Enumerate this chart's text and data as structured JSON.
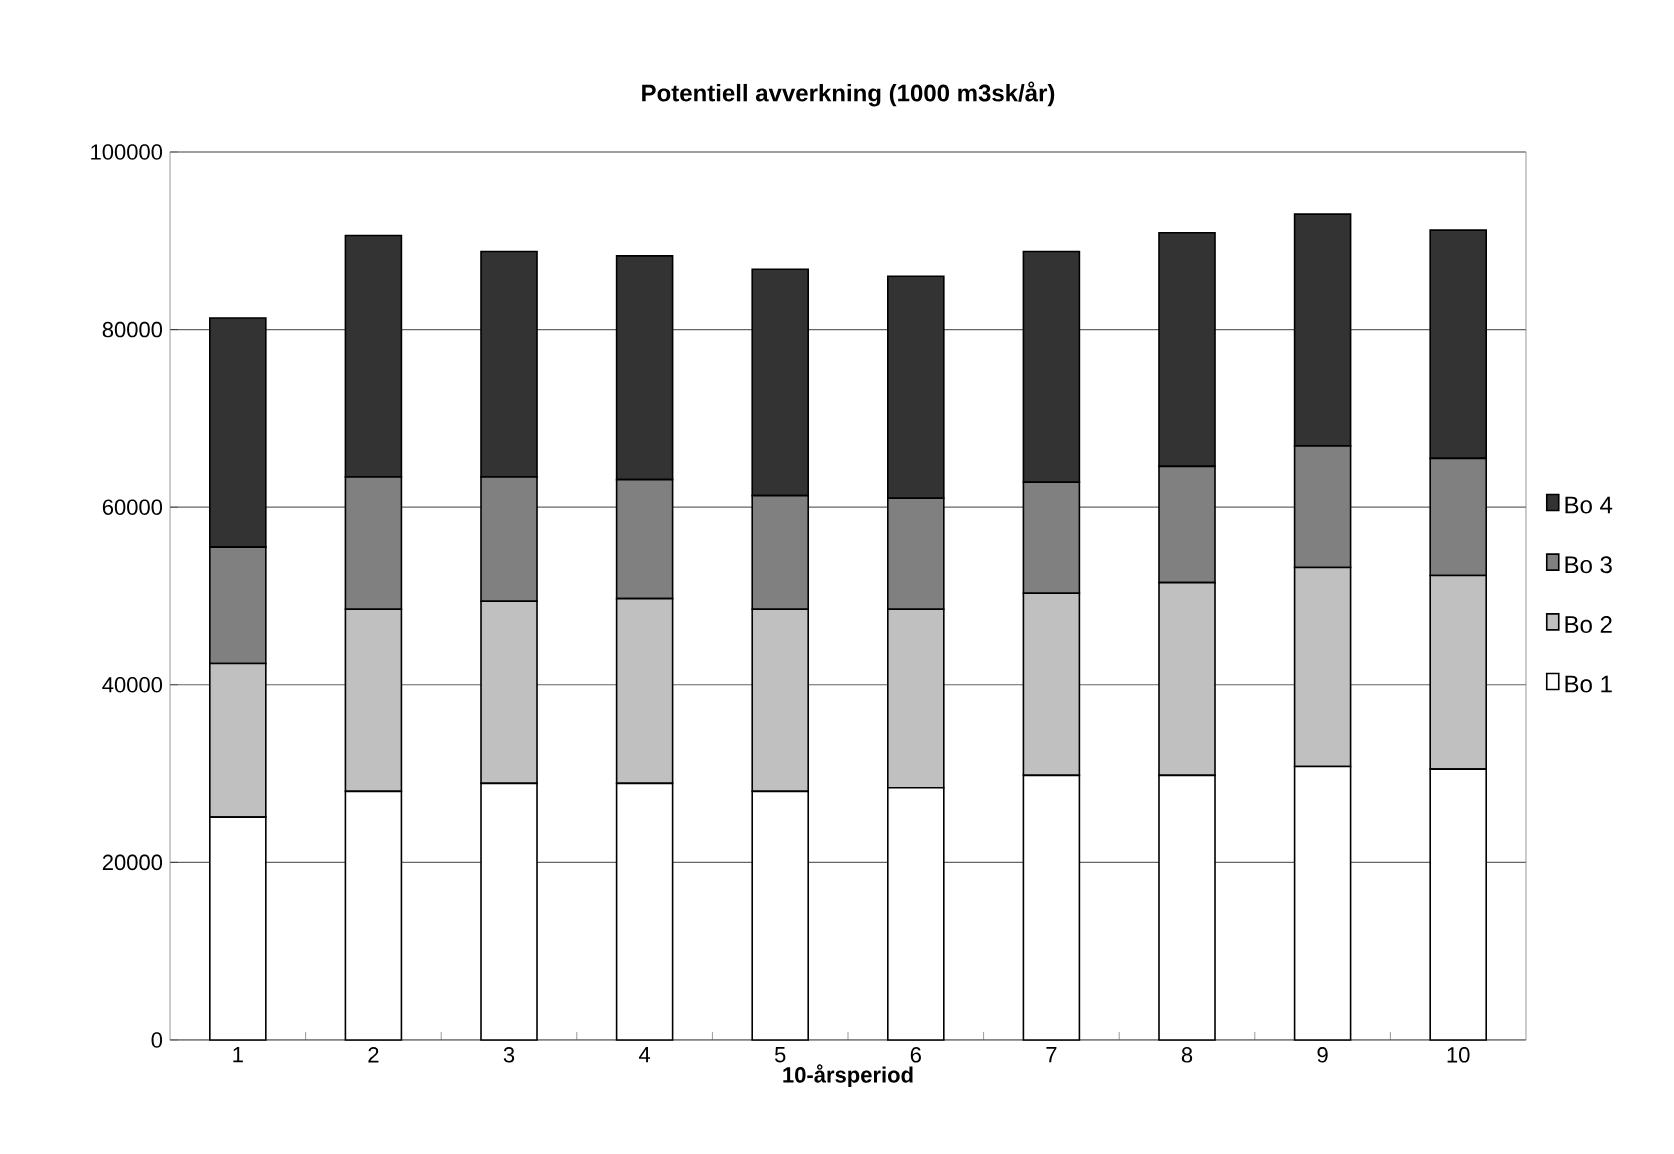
{
  "chart_data": {
    "type": "bar",
    "stacked": true,
    "title": "Potentiell avverkning (1000 m3sk/år)",
    "xlabel": "10-årsperiod",
    "categories": [
      "1",
      "2",
      "3",
      "4",
      "5",
      "6",
      "7",
      "8",
      "9",
      "10"
    ],
    "series": [
      {
        "name": "Bo 1",
        "color": "#ffffff",
        "values": [
          25100,
          28000,
          28900,
          28900,
          28000,
          28400,
          29800,
          29800,
          30800,
          30500
        ]
      },
      {
        "name": "Bo 2",
        "color": "#c0c0c0",
        "values": [
          17300,
          20500,
          20500,
          20800,
          20500,
          20100,
          20500,
          21700,
          22400,
          21800
        ]
      },
      {
        "name": "Bo 3",
        "color": "#808080",
        "values": [
          13100,
          14900,
          14000,
          13400,
          12800,
          12500,
          12500,
          13100,
          13700,
          13200
        ]
      },
      {
        "name": "Bo 4",
        "color": "#333333",
        "values": [
          25800,
          27200,
          25400,
          25200,
          25500,
          25000,
          26000,
          26300,
          26100,
          25700
        ]
      }
    ],
    "ylim": [
      0,
      100000
    ],
    "yticks": [
      0,
      20000,
      40000,
      60000,
      80000,
      100000
    ],
    "grid": "y",
    "legend": "right"
  }
}
